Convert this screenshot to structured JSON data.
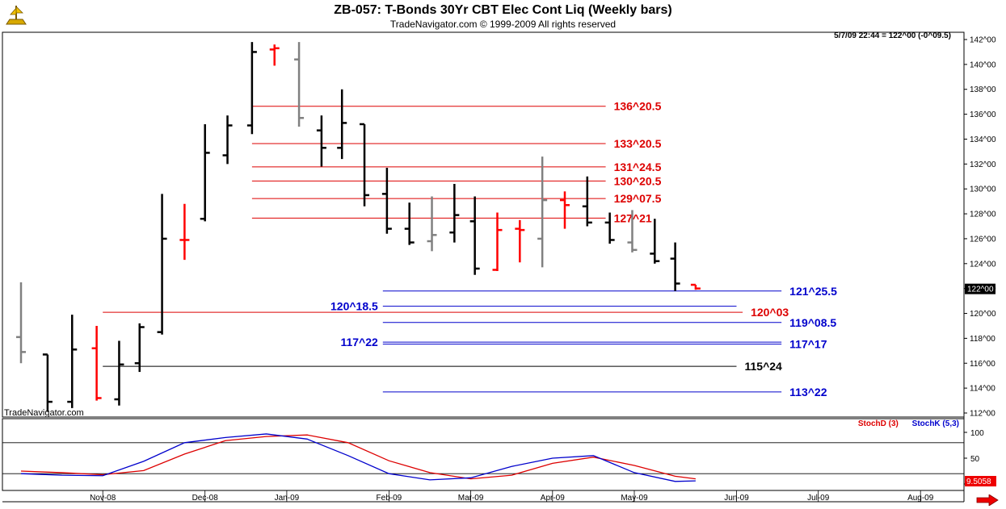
{
  "header": {
    "title": "ZB-057:  T-Bonds 30Yr CBT Elec Cont Liq  (Weekly bars)",
    "subtitle": "TradeNavigator.com © 1999-2009 All rights reserved",
    "readout": "5/7/09 22:44 = 122^00 (-0^09.5)",
    "watermark": "TradeNavigator.com"
  },
  "colors": {
    "up_bar": "#000000",
    "down_bar": "#ff0000",
    "neutral_bar": "#808080",
    "red_level": "#dd0000",
    "blue_level": "#0000cc",
    "black_level": "#000000",
    "stoch_d": "#dd0000",
    "stoch_k": "#0000cc",
    "price_tag_bg": "#000000",
    "stoch_tag_bg": "#ee0000"
  },
  "chart_data": {
    "type": "ohlc",
    "x_labels": [
      "Nov-08",
      "Dec-08",
      "Jan-09",
      "Feb-09",
      "Mar-09",
      "Apr-09",
      "May-09",
      "Jun-09",
      "Jul-09",
      "Aug-09"
    ],
    "x_label_weeks": [
      4,
      9,
      13,
      18,
      22,
      26,
      30,
      35,
      39,
      44
    ],
    "price_axis": {
      "min": 112,
      "max": 142,
      "step": 2,
      "ticks": [
        "112^00",
        "114^00",
        "116^00",
        "118^00",
        "120^00",
        "122^00",
        "124^00",
        "126^00",
        "128^00",
        "130^00",
        "132^00",
        "134^00",
        "136^00",
        "138^00",
        "140^00",
        "142^00"
      ]
    },
    "last_price_tag": "122^00",
    "bars": [
      {
        "w": 0,
        "o": 118.1,
        "h": 122.5,
        "l": 116.0,
        "c": 116.9,
        "color": "neutral"
      },
      {
        "w": 1.3,
        "o": 116.7,
        "h": 116.7,
        "l": 112.1,
        "c": 112.9,
        "color": "up"
      },
      {
        "w": 2.5,
        "o": 112.9,
        "h": 119.9,
        "l": 112.4,
        "c": 117.1,
        "color": "up"
      },
      {
        "w": 3.7,
        "o": 117.2,
        "h": 119.0,
        "l": 113.0,
        "c": 113.2,
        "color": "down"
      },
      {
        "w": 4.8,
        "o": 113.1,
        "h": 117.8,
        "l": 112.6,
        "c": 115.9,
        "color": "up"
      },
      {
        "w": 5.8,
        "o": 116.0,
        "h": 119.2,
        "l": 115.3,
        "c": 118.9,
        "color": "up"
      },
      {
        "w": 6.9,
        "o": 118.5,
        "h": 129.6,
        "l": 118.3,
        "c": 126.0,
        "color": "up"
      },
      {
        "w": 8.0,
        "o": 125.9,
        "h": 128.8,
        "l": 124.3,
        "c": 125.9,
        "color": "down"
      },
      {
        "w": 9.0,
        "o": 127.6,
        "h": 135.2,
        "l": 127.4,
        "c": 132.9,
        "color": "up"
      },
      {
        "w": 10.1,
        "o": 132.7,
        "h": 135.9,
        "l": 132.0,
        "c": 135.1,
        "color": "up"
      },
      {
        "w": 11.3,
        "o": 135.1,
        "h": 141.8,
        "l": 134.4,
        "c": 141.0,
        "color": "up"
      },
      {
        "w": 12.4,
        "o": 141.2,
        "h": 141.6,
        "l": 139.9,
        "c": 141.3,
        "color": "down"
      },
      {
        "w": 13.6,
        "o": 140.4,
        "h": 141.8,
        "l": 135.0,
        "c": 135.7,
        "color": "neutral"
      },
      {
        "w": 14.7,
        "o": 134.7,
        "h": 135.9,
        "l": 131.8,
        "c": 133.3,
        "color": "up"
      },
      {
        "w": 15.7,
        "o": 133.3,
        "h": 138.0,
        "l": 132.4,
        "c": 135.3,
        "color": "up"
      },
      {
        "w": 16.8,
        "o": 135.2,
        "h": 135.2,
        "l": 128.6,
        "c": 129.5,
        "color": "up"
      },
      {
        "w": 17.9,
        "o": 129.6,
        "h": 131.7,
        "l": 126.4,
        "c": 126.8,
        "color": "up"
      },
      {
        "w": 19.0,
        "o": 126.8,
        "h": 128.9,
        "l": 125.5,
        "c": 125.7,
        "color": "up"
      },
      {
        "w": 20.1,
        "o": 125.8,
        "h": 129.4,
        "l": 125.0,
        "c": 126.3,
        "color": "neutral"
      },
      {
        "w": 21.2,
        "o": 126.5,
        "h": 130.4,
        "l": 125.7,
        "c": 127.9,
        "color": "up"
      },
      {
        "w": 22.2,
        "o": 127.4,
        "h": 129.4,
        "l": 123.1,
        "c": 123.6,
        "color": "up"
      },
      {
        "w": 23.3,
        "o": 123.5,
        "h": 128.1,
        "l": 123.4,
        "c": 126.7,
        "color": "down"
      },
      {
        "w": 24.4,
        "o": 126.8,
        "h": 127.5,
        "l": 124.1,
        "c": 126.7,
        "color": "down"
      },
      {
        "w": 25.5,
        "o": 126.0,
        "h": 132.6,
        "l": 123.7,
        "c": 129.1,
        "color": "neutral"
      },
      {
        "w": 26.6,
        "o": 129.1,
        "h": 129.8,
        "l": 126.8,
        "c": 128.7,
        "color": "down"
      },
      {
        "w": 27.7,
        "o": 128.6,
        "h": 131.0,
        "l": 127.0,
        "c": 127.3,
        "color": "up"
      },
      {
        "w": 28.8,
        "o": 127.3,
        "h": 128.1,
        "l": 125.6,
        "c": 125.9,
        "color": "up"
      },
      {
        "w": 29.9,
        "o": 125.7,
        "h": 128.3,
        "l": 124.9,
        "c": 125.1,
        "color": "neutral"
      },
      {
        "w": 31.0,
        "o": 124.8,
        "h": 127.6,
        "l": 124.0,
        "c": 124.2,
        "color": "up"
      },
      {
        "w": 32.0,
        "o": 124.4,
        "h": 125.7,
        "l": 121.8,
        "c": 122.4,
        "color": "up"
      },
      {
        "w": 33.0,
        "o": 122.3,
        "h": 122.3,
        "l": 121.9,
        "c": 122.0,
        "color": "down"
      }
    ],
    "levels": [
      {
        "price": 136.64,
        "x0": 11.3,
        "x1": 28.6,
        "color": "red",
        "label": "136^20.5",
        "label_at": "end"
      },
      {
        "price": 133.64,
        "x0": 11.3,
        "x1": 28.6,
        "color": "red",
        "label": "133^20.5",
        "label_at": "end"
      },
      {
        "price": 131.77,
        "x0": 11.3,
        "x1": 28.6,
        "color": "red",
        "label": "131^24.5",
        "label_at": "end"
      },
      {
        "price": 130.64,
        "x0": 11.3,
        "x1": 28.6,
        "color": "red",
        "label": "130^20.5",
        "label_at": "end"
      },
      {
        "price": 129.23,
        "x0": 11.3,
        "x1": 28.6,
        "color": "red",
        "label": "129^07.5",
        "label_at": "end"
      },
      {
        "price": 127.66,
        "x0": 11.3,
        "x1": 28.6,
        "color": "red",
        "label": "127^21",
        "label_at": "end"
      },
      {
        "price": 121.8,
        "x0": 17.7,
        "x1": 37.2,
        "color": "blue",
        "label": "121^25.5",
        "label_at": "end"
      },
      {
        "price": 120.58,
        "x0": 17.7,
        "x1": 35.0,
        "color": "blue",
        "label": "120^18.5",
        "label_at": "start"
      },
      {
        "price": 120.09,
        "x0": 4.0,
        "x1": 35.3,
        "color": "red",
        "label": "120^03",
        "label_at": "end"
      },
      {
        "price": 119.27,
        "x0": 17.7,
        "x1": 37.2,
        "color": "blue",
        "label": "119^08.5",
        "label_at": "end"
      },
      {
        "price": 117.69,
        "x0": 17.7,
        "x1": 37.2,
        "color": "blue",
        "label": "117^22",
        "label_at": "start"
      },
      {
        "price": 117.53,
        "x0": 17.7,
        "x1": 37.2,
        "color": "blue",
        "label": "117^17",
        "label_at": "end"
      },
      {
        "price": 115.75,
        "x0": 4.0,
        "x1": 35.0,
        "color": "black",
        "label": "115^24",
        "label_at": "end"
      },
      {
        "price": 113.69,
        "x0": 17.7,
        "x1": 37.2,
        "color": "blue",
        "label": "113^22",
        "label_at": "end"
      }
    ],
    "stochastic": {
      "axis_ticks": [
        "100",
        "50",
        "0"
      ],
      "guides": [
        80,
        20
      ],
      "legend_d": "StochD (3)",
      "legend_k": "StochK (5,3)",
      "last_value_tag": "9.5058",
      "x": [
        0,
        2,
        4,
        6,
        8,
        10,
        12,
        14,
        16,
        18,
        20,
        22,
        24,
        26,
        28,
        30,
        32,
        33
      ],
      "d": [
        25,
        22,
        18,
        26,
        58,
        84,
        92,
        95,
        80,
        45,
        22,
        10,
        17,
        40,
        52,
        36,
        15,
        10
      ],
      "k": [
        20,
        17,
        16,
        44,
        80,
        90,
        97,
        87,
        55,
        20,
        8,
        12,
        34,
        50,
        55,
        22,
        5,
        6
      ]
    }
  }
}
